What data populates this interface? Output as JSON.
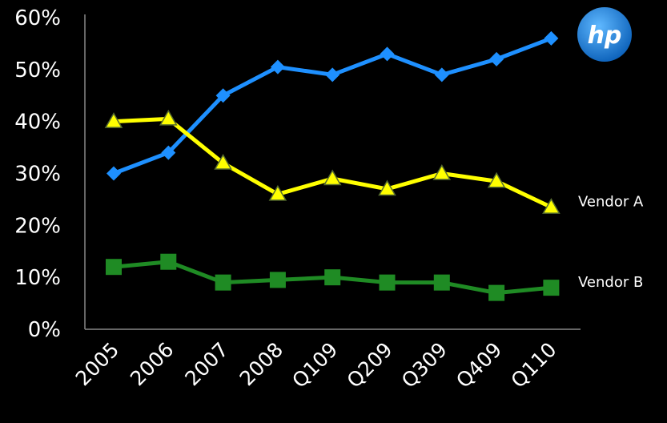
{
  "chart_data": {
    "type": "line",
    "categories": [
      "2005",
      "2006",
      "2007",
      "2008",
      "Q109",
      "Q209",
      "Q309",
      "Q409",
      "Q110"
    ],
    "ylim": [
      0,
      60
    ],
    "yticks": [
      "0%",
      "10%",
      "20%",
      "30%",
      "40%",
      "50%",
      "60%"
    ],
    "grid": false,
    "series": [
      {
        "name": "hp",
        "color": "#1E90FF",
        "marker": "diamond",
        "values": [
          30,
          34,
          45,
          50.5,
          49,
          53,
          49,
          52,
          56
        ]
      },
      {
        "name": "Vendor A",
        "color": "#FFFF00",
        "marker": "triangle",
        "values": [
          40,
          40.5,
          32,
          26,
          29,
          27,
          30,
          28.5,
          23.5
        ]
      },
      {
        "name": "Vendor B",
        "color": "#1F8B24",
        "marker": "square",
        "values": [
          12,
          13,
          9,
          9.5,
          10,
          9,
          9,
          7,
          8
        ]
      }
    ]
  },
  "logo": {
    "text": "hp"
  }
}
